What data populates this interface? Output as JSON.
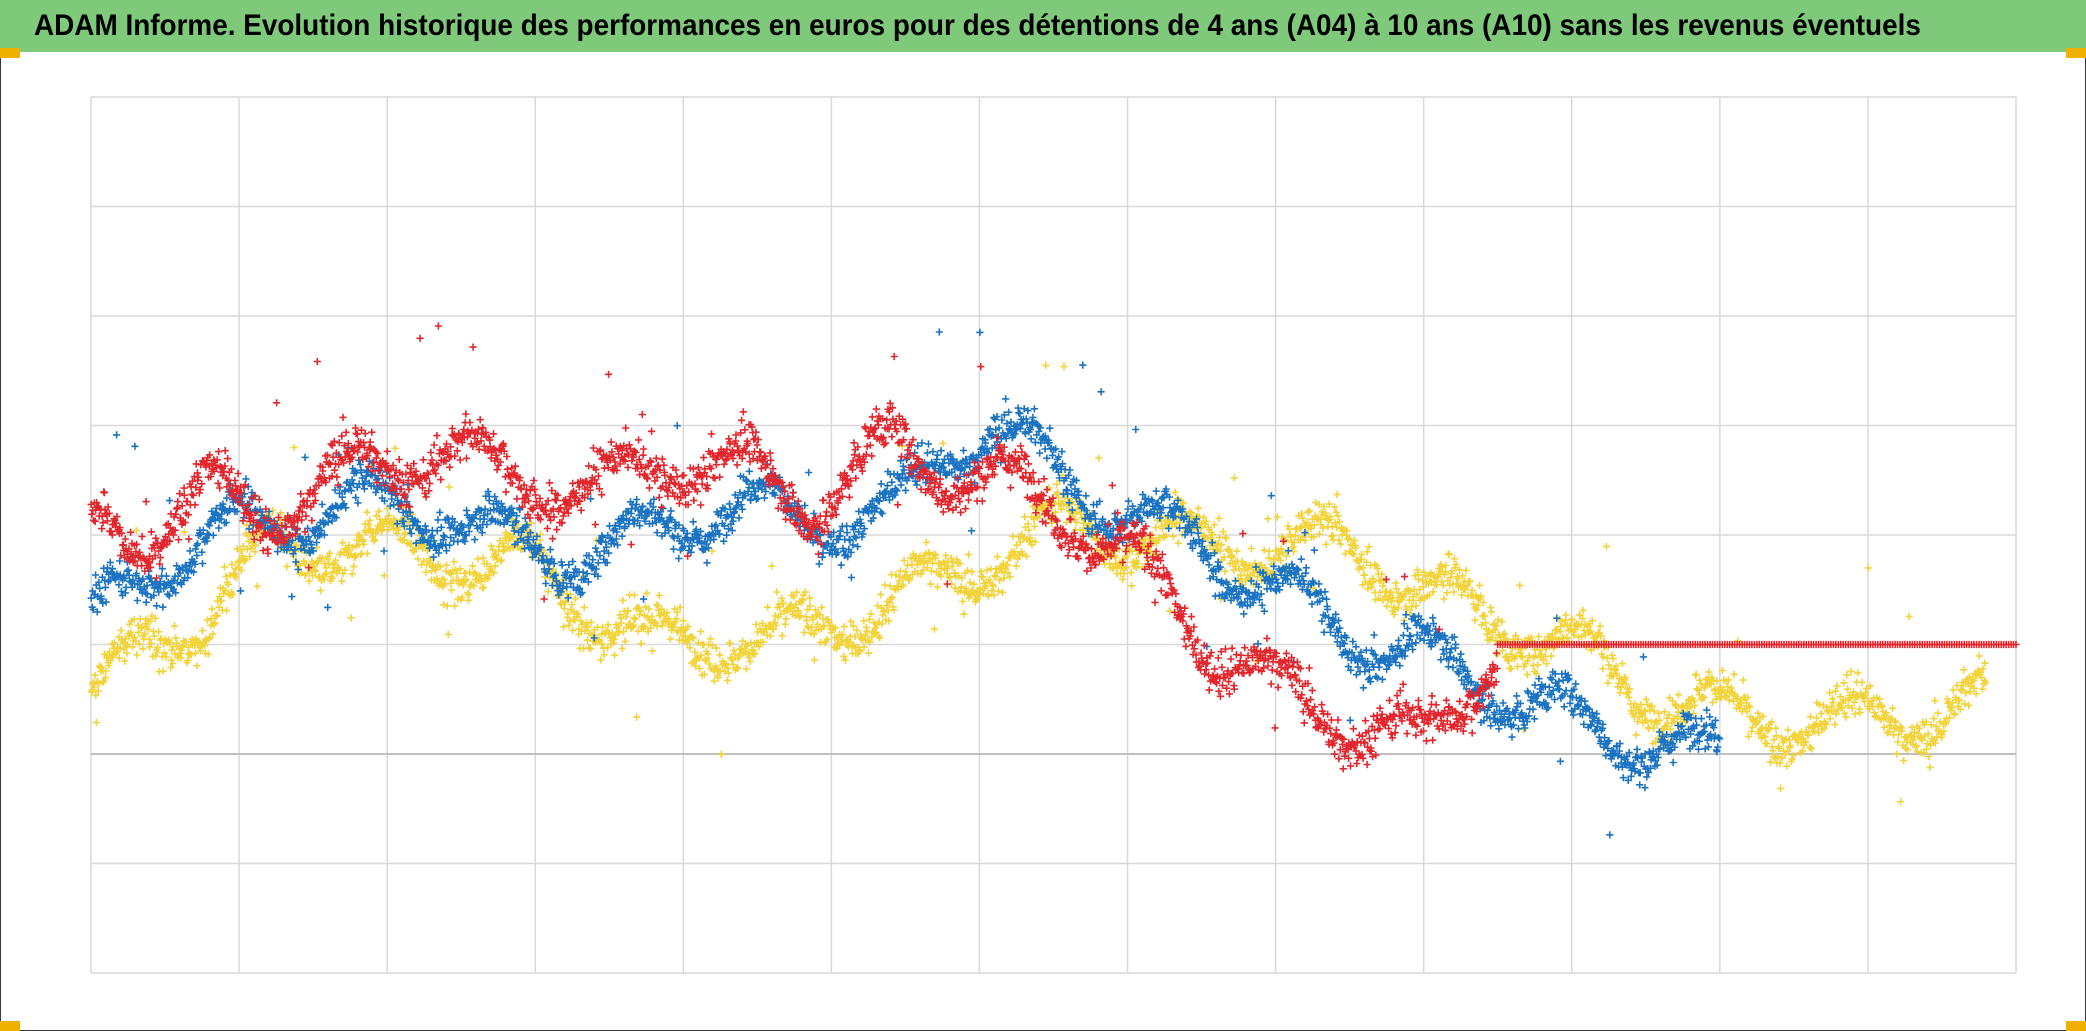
{
  "title": "ADAM Informe. Evolution historique des performances en euros pour des détentions de 4 ans (A04) à 10 ans (A10) sans les revenus éventuels",
  "colors": {
    "title_bg": "#7fc97a",
    "corner_accent": "#f0b000",
    "grid": "#d9d9d9",
    "zero_line": "#bfbfbf"
  },
  "chart_data": {
    "type": "scatter",
    "marker": "plus",
    "x_divisions": 13,
    "x_range": [
      0,
      13
    ],
    "ylim": [
      -2,
      6
    ],
    "y_gridlines": [
      -2,
      -1,
      0,
      1,
      2,
      3,
      4,
      5,
      6
    ],
    "series": [
      {
        "color": "#f2d33a",
        "anchors": [
          [
            0,
            0.5
          ],
          [
            0.4,
            1.0
          ],
          [
            0.8,
            1.3
          ],
          [
            1.2,
            1.9
          ],
          [
            1.8,
            1.9
          ],
          [
            2.4,
            1.8
          ],
          [
            3.0,
            1.7
          ],
          [
            3.4,
            1.3
          ],
          [
            3.8,
            1.0
          ],
          [
            4.2,
            1.1
          ],
          [
            4.6,
            1.0
          ],
          [
            5.2,
            1.3
          ],
          [
            5.8,
            1.6
          ],
          [
            6.2,
            1.9
          ],
          [
            6.6,
            2.1
          ],
          [
            7.0,
            2.0
          ],
          [
            7.5,
            1.9
          ],
          [
            8.0,
            1.9
          ],
          [
            8.5,
            1.9
          ],
          [
            9.0,
            1.5
          ],
          [
            9.5,
            1.2
          ],
          [
            10.0,
            1.0
          ],
          [
            10.4,
            0.6
          ],
          [
            10.8,
            0.45
          ],
          [
            11.2,
            0.3
          ],
          [
            11.6,
            0.3
          ],
          [
            12.0,
            0.3
          ],
          [
            12.5,
            0.4
          ],
          [
            12.8,
            0.5
          ]
        ],
        "spread": 0.28
      },
      {
        "color": "#1a73c2",
        "anchors": [
          [
            0,
            1.2
          ],
          [
            0.4,
            1.7
          ],
          [
            0.8,
            2.0
          ],
          [
            1.2,
            2.1
          ],
          [
            1.8,
            2.3
          ],
          [
            2.4,
            2.2
          ],
          [
            2.9,
            1.9
          ],
          [
            3.4,
            1.8
          ],
          [
            3.9,
            2.1
          ],
          [
            4.4,
            2.3
          ],
          [
            4.9,
            2.1
          ],
          [
            5.4,
            2.2
          ],
          [
            5.8,
            2.8
          ],
          [
            6.1,
            3.0
          ],
          [
            6.6,
            2.5
          ],
          [
            7.0,
            2.2
          ],
          [
            7.5,
            1.9
          ],
          [
            8.0,
            1.5
          ],
          [
            8.5,
            1.1
          ],
          [
            9.0,
            0.9
          ],
          [
            9.5,
            0.6
          ],
          [
            10.0,
            0.3
          ],
          [
            10.4,
            0.15
          ],
          [
            10.8,
            0.0
          ],
          [
            11.0,
            0.0
          ]
        ],
        "spread": 0.26
      },
      {
        "color": "#e3262c",
        "anchors": [
          [
            0,
            2.1
          ],
          [
            0.4,
            2.0
          ],
          [
            0.8,
            2.4
          ],
          [
            1.2,
            2.2
          ],
          [
            1.8,
            2.6
          ],
          [
            2.4,
            2.8
          ],
          [
            2.9,
            2.5
          ],
          [
            3.4,
            2.4
          ],
          [
            3.9,
            2.7
          ],
          [
            4.4,
            2.6
          ],
          [
            4.9,
            2.3
          ],
          [
            5.4,
            2.8
          ],
          [
            5.8,
            2.6
          ],
          [
            6.1,
            2.5
          ],
          [
            6.6,
            2.2
          ],
          [
            7.0,
            1.8
          ],
          [
            7.5,
            1.1
          ],
          [
            8.0,
            0.6
          ],
          [
            8.5,
            0.3
          ],
          [
            9.0,
            0.1
          ],
          [
            9.5,
            1.0
          ]
        ],
        "spread": 0.3,
        "flat_line": {
          "from": 9.5,
          "to": 13.0,
          "value": 1.0
        }
      }
    ]
  }
}
